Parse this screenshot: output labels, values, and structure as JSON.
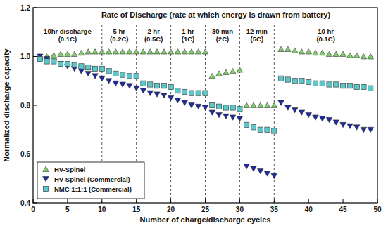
{
  "chart_data": {
    "type": "scatter",
    "title": "Rate of Discharge (rate at which energy is drawn from battery)",
    "x_label": "Number of charge/discharge cycles",
    "y_label": "Normalized discharge capacity",
    "xlim": [
      0,
      50
    ],
    "ylim": [
      0.4,
      1.2
    ],
    "xticks": [
      0,
      5,
      10,
      15,
      20,
      25,
      30,
      35,
      40,
      45,
      50
    ],
    "yticks": [
      0.4,
      0.6,
      0.8,
      {
        "value": 1,
        "label": "1.0"
      },
      1.2
    ],
    "legend": "lower left",
    "grid": false,
    "annotations": [
      {
        "label": [
          "10hr discharge",
          "(0.1C)"
        ],
        "x": [
          0,
          10
        ]
      },
      {
        "label": [
          "5 hr",
          "(0.2C)"
        ],
        "x": [
          10,
          15
        ]
      },
      {
        "label": [
          "2 hr",
          "(0.5C)"
        ],
        "x": [
          15,
          20
        ]
      },
      {
        "label": [
          "1 hr",
          "(1C)"
        ],
        "x": [
          20,
          25
        ]
      },
      {
        "label": [
          "30 min",
          "(2C)"
        ],
        "x": [
          25,
          30
        ]
      },
      {
        "label": [
          "12 min",
          "(5C)"
        ],
        "x": [
          30,
          35
        ]
      },
      {
        "label": [
          "10 hr",
          "(0.1C)"
        ],
        "x": [
          35,
          50
        ]
      }
    ],
    "x": [
      1,
      2,
      3,
      4,
      5,
      6,
      7,
      8,
      9,
      10,
      11,
      12,
      13,
      14,
      15,
      16,
      17,
      18,
      19,
      20,
      21,
      22,
      23,
      24,
      25,
      26,
      27,
      28,
      29,
      30,
      31,
      32,
      33,
      34,
      35,
      36,
      37,
      38,
      39,
      40,
      41,
      42,
      43,
      44,
      45,
      46,
      47,
      48,
      49
    ],
    "series": [
      {
        "name": "HV-Spinel",
        "color": "#7fd06c",
        "marker": "triangle-up",
        "values": [
          1.0,
          1.0,
          1.005,
          1.01,
          1.01,
          1.01,
          1.015,
          1.02,
          1.02,
          1.02,
          1.02,
          1.02,
          1.02,
          1.02,
          1.02,
          1.02,
          1.02,
          1.02,
          1.02,
          1.02,
          1.02,
          1.02,
          1.02,
          1.02,
          1.02,
          0.92,
          0.93,
          0.935,
          0.94,
          0.945,
          0.8,
          0.8,
          0.8,
          0.8,
          0.8,
          1.03,
          1.03,
          1.025,
          1.02,
          1.02,
          1.015,
          1.015,
          1.01,
          1.01,
          1.01,
          1.005,
          1.005,
          1.0,
          1.0
        ]
      },
      {
        "name": "HV-Spinel (Commercial)",
        "color": "#1f2a9c",
        "marker": "triangle-down",
        "values": [
          1.0,
          0.99,
          0.98,
          0.97,
          0.96,
          0.95,
          0.94,
          0.93,
          0.92,
          0.91,
          0.9,
          0.89,
          0.885,
          0.88,
          0.87,
          0.86,
          0.85,
          0.845,
          0.84,
          0.83,
          0.82,
          0.81,
          0.8,
          0.795,
          0.79,
          0.77,
          0.76,
          0.755,
          0.75,
          0.745,
          0.55,
          0.54,
          0.53,
          0.52,
          0.51,
          0.81,
          0.79,
          0.78,
          0.77,
          0.76,
          0.75,
          0.745,
          0.74,
          0.73,
          0.72,
          0.715,
          0.71,
          0.7,
          0.7
        ]
      },
      {
        "name": "NMC 1:1:1 (Commercial)",
        "color": "#5cc6c9",
        "marker": "square",
        "values": [
          0.99,
          0.98,
          0.98,
          0.97,
          0.97,
          0.965,
          0.96,
          0.955,
          0.95,
          0.95,
          0.94,
          0.93,
          0.925,
          0.92,
          0.92,
          0.89,
          0.885,
          0.88,
          0.88,
          0.875,
          0.86,
          0.855,
          0.85,
          0.85,
          0.85,
          0.8,
          0.795,
          0.79,
          0.79,
          0.785,
          0.72,
          0.71,
          0.7,
          0.7,
          0.695,
          0.91,
          0.905,
          0.9,
          0.9,
          0.895,
          0.89,
          0.89,
          0.885,
          0.885,
          0.88,
          0.88,
          0.875,
          0.875,
          0.87
        ]
      }
    ]
  }
}
